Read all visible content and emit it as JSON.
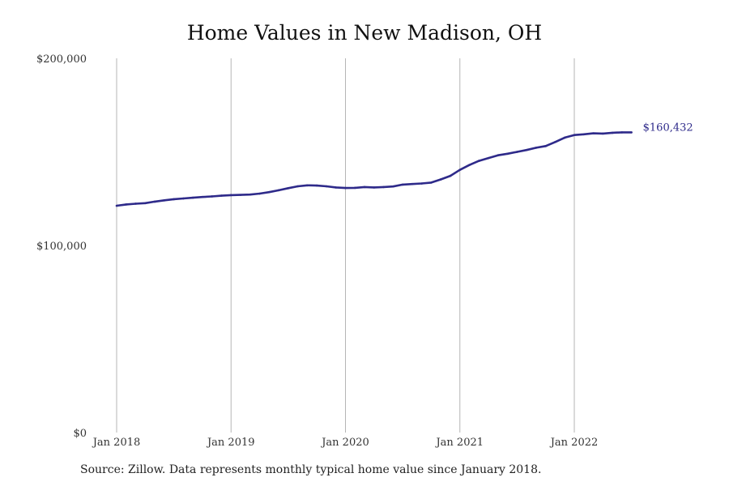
{
  "chart_data": {
    "type": "line",
    "title": "Home Values in New Madison, OH",
    "xlabel": "",
    "ylabel": "",
    "ylim": [
      0,
      200000
    ],
    "xlim": [
      "2018-01",
      "2022-12"
    ],
    "yticks": [
      {
        "value": 0,
        "label": "$0"
      },
      {
        "value": 100000,
        "label": "$100,000"
      },
      {
        "value": 200000,
        "label": "$200,000"
      }
    ],
    "xticks": [
      {
        "value": "2018-01",
        "label": "Jan 2018"
      },
      {
        "value": "2019-01",
        "label": "Jan 2019"
      },
      {
        "value": "2020-01",
        "label": "Jan 2020"
      },
      {
        "value": "2021-01",
        "label": "Jan 2021"
      },
      {
        "value": "2022-01",
        "label": "Jan 2022"
      }
    ],
    "grid": "vertical",
    "legend": "none",
    "color": "#2e2a8a",
    "end_label": "$160,432",
    "series": [
      {
        "x": [
          "2018-01",
          "2018-02",
          "2018-03",
          "2018-04",
          "2018-05",
          "2018-06",
          "2018-07",
          "2018-08",
          "2018-09",
          "2018-10",
          "2018-11",
          "2018-12",
          "2019-01",
          "2019-02",
          "2019-03",
          "2019-04",
          "2019-05",
          "2019-06",
          "2019-07",
          "2019-08",
          "2019-09",
          "2019-10",
          "2019-11",
          "2019-12",
          "2020-01",
          "2020-02",
          "2020-03",
          "2020-04",
          "2020-05",
          "2020-06",
          "2020-07",
          "2020-08",
          "2020-09",
          "2020-10",
          "2020-11",
          "2020-12",
          "2021-01",
          "2021-02",
          "2021-03",
          "2021-04",
          "2021-05",
          "2021-06",
          "2021-07",
          "2021-08",
          "2021-09",
          "2021-10",
          "2021-11",
          "2021-12",
          "2022-01",
          "2022-02",
          "2022-03",
          "2022-04",
          "2022-05",
          "2022-06",
          "2022-07"
        ],
        "values": [
          121200,
          121900,
          122300,
          122600,
          123400,
          124100,
          124700,
          125100,
          125500,
          125900,
          126200,
          126600,
          126900,
          127000,
          127200,
          127700,
          128500,
          129500,
          130600,
          131600,
          132100,
          132000,
          131600,
          131000,
          130700,
          130800,
          131200,
          131000,
          131200,
          131500,
          132500,
          132800,
          133100,
          133600,
          135300,
          137200,
          140400,
          143000,
          145200,
          146700,
          148200,
          149000,
          150000,
          151000,
          152200,
          153100,
          155300,
          157600,
          159000,
          159400,
          159900,
          159800,
          160200,
          160432,
          160432
        ]
      }
    ]
  },
  "source_note": "Source: Zillow. Data represents monthly typical home value since January 2018."
}
